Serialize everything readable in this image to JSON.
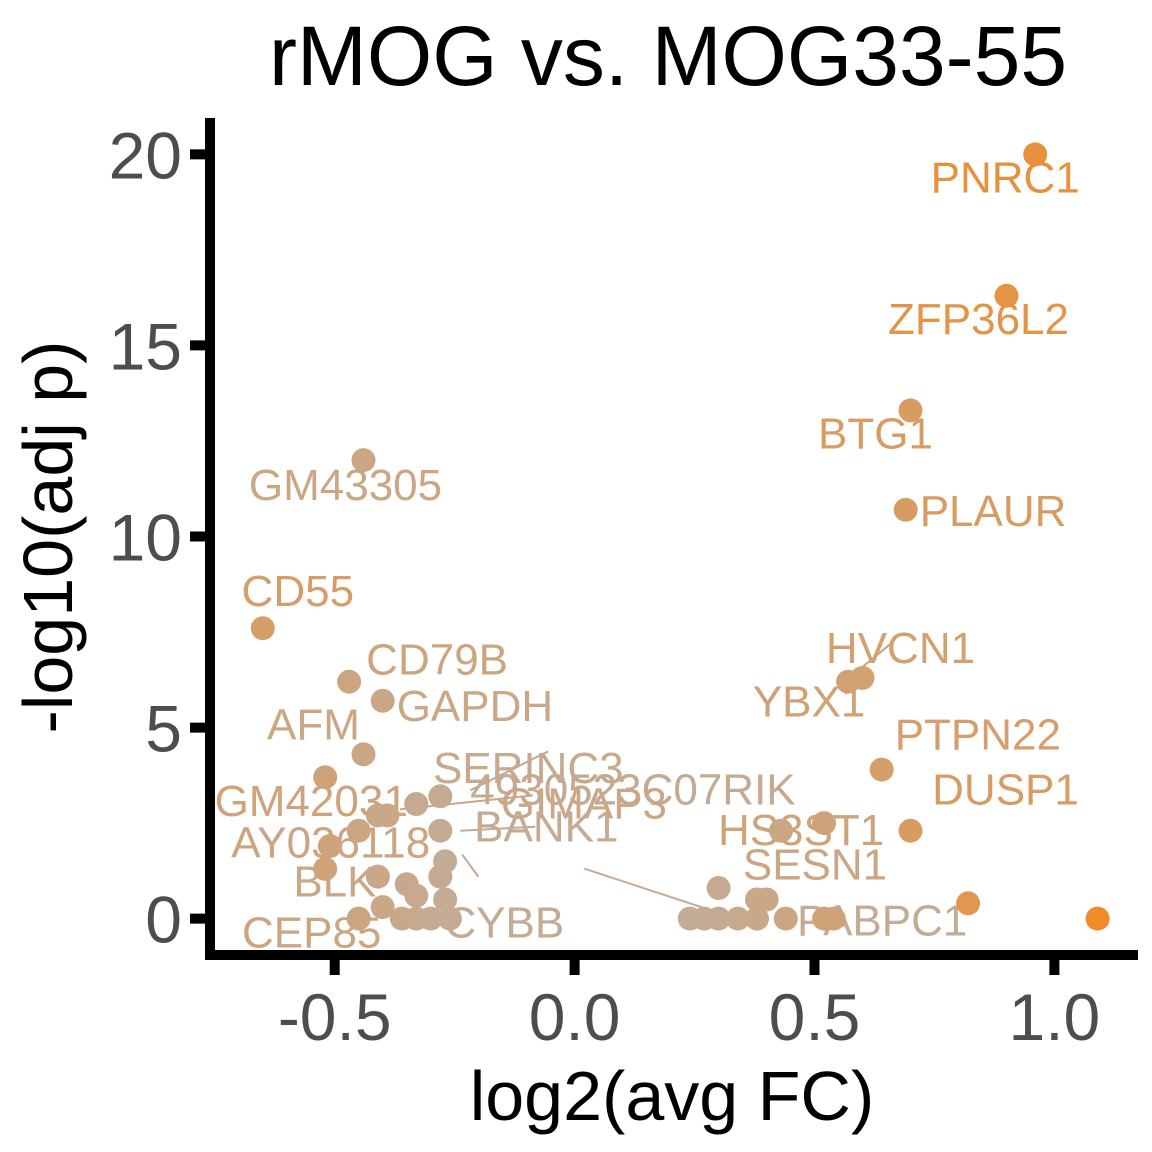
{
  "chart_data": {
    "type": "scatter",
    "title": "rMOG vs. MOG33-55",
    "xlabel": "log2(avg FC)",
    "ylabel": "-log10(adj p)",
    "xlim": [
      -0.76,
      1.17
    ],
    "ylim": [
      -0.9,
      20.9
    ],
    "xticks": [
      -0.5,
      0.0,
      0.5,
      1.0
    ],
    "xtick_labels": [
      "-0.5",
      "0.0",
      "0.5",
      "1.0"
    ],
    "yticks": [
      0,
      5,
      10,
      15,
      20
    ],
    "ytick_labels": [
      "0",
      "5",
      "10",
      "15",
      "20"
    ],
    "grid": false,
    "legend": "none",
    "colors": {
      "low": "#bdb0a6",
      "high": "#ef8b28",
      "axis": "#000000",
      "tick_text": "#4d4d4d"
    },
    "points": [
      {
        "x": 0.96,
        "y": 20.0,
        "label": "PNRC1"
      },
      {
        "x": 0.9,
        "y": 16.3,
        "label": "ZFP36L2"
      },
      {
        "x": 0.7,
        "y": 13.3,
        "label": "BTG1"
      },
      {
        "x": 0.69,
        "y": 10.7,
        "label": "PLAUR"
      },
      {
        "x": 0.6,
        "y": 6.3,
        "label": "HVCN1"
      },
      {
        "x": 0.57,
        "y": 6.2,
        "label": "YBX1"
      },
      {
        "x": 0.64,
        "y": 3.9,
        "label": "PTPN22"
      },
      {
        "x": 0.52,
        "y": 2.5,
        "label": "HS3ST1"
      },
      {
        "x": 0.7,
        "y": 2.3,
        "label": "DUSP1"
      },
      {
        "x": 0.43,
        "y": 2.3,
        "label": "SESN1"
      },
      {
        "x": 0.82,
        "y": 0.4,
        "label": ""
      },
      {
        "x": 1.09,
        "y": 0.0,
        "label": ""
      },
      {
        "x": 0.3,
        "y": 0.8,
        "label": ""
      },
      {
        "x": 0.38,
        "y": 0.5,
        "label": ""
      },
      {
        "x": 0.4,
        "y": 0.5,
        "label": ""
      },
      {
        "x": 0.52,
        "y": 0.0,
        "label": ""
      },
      {
        "x": 0.54,
        "y": 0.0,
        "label": ""
      },
      {
        "x": 0.44,
        "y": 0.0,
        "label": ""
      },
      {
        "x": 0.38,
        "y": 0.0,
        "label": ""
      },
      {
        "x": 0.34,
        "y": 0.0,
        "label": ""
      },
      {
        "x": 0.3,
        "y": 0.0,
        "label": ""
      },
      {
        "x": 0.27,
        "y": 0.0,
        "label": "PABPC1"
      },
      {
        "x": 0.24,
        "y": 0.0,
        "label": ""
      },
      {
        "x": -0.44,
        "y": 12.0,
        "label": "GM43305"
      },
      {
        "x": -0.65,
        "y": 7.6,
        "label": "CD55"
      },
      {
        "x": -0.47,
        "y": 6.2,
        "label": "CD79B"
      },
      {
        "x": -0.4,
        "y": 5.7,
        "label": "GAPDH"
      },
      {
        "x": -0.44,
        "y": 4.3,
        "label": "AFM"
      },
      {
        "x": -0.52,
        "y": 3.7,
        "label": "GM42031"
      },
      {
        "x": -0.28,
        "y": 3.2,
        "label": "4930523C07RIK"
      },
      {
        "x": -0.33,
        "y": 3.0,
        "label": "SERINC3"
      },
      {
        "x": -0.41,
        "y": 2.7,
        "label": "GIMAP3"
      },
      {
        "x": -0.39,
        "y": 2.7,
        "label": ""
      },
      {
        "x": -0.45,
        "y": 2.3,
        "label": "AY036118"
      },
      {
        "x": -0.28,
        "y": 2.3,
        "label": "BANK1"
      },
      {
        "x": -0.51,
        "y": 1.9,
        "label": ""
      },
      {
        "x": -0.52,
        "y": 1.3,
        "label": ""
      },
      {
        "x": -0.41,
        "y": 1.1,
        "label": "BLK"
      },
      {
        "x": -0.27,
        "y": 1.5,
        "label": ""
      },
      {
        "x": -0.28,
        "y": 1.1,
        "label": "CYBB"
      },
      {
        "x": -0.35,
        "y": 0.9,
        "label": ""
      },
      {
        "x": -0.33,
        "y": 0.6,
        "label": ""
      },
      {
        "x": -0.4,
        "y": 0.3,
        "label": ""
      },
      {
        "x": -0.45,
        "y": 0.0,
        "label": "CEP85"
      },
      {
        "x": -0.36,
        "y": 0.0,
        "label": ""
      },
      {
        "x": -0.33,
        "y": 0.0,
        "label": ""
      },
      {
        "x": -0.3,
        "y": 0.0,
        "label": ""
      },
      {
        "x": -0.26,
        "y": 0.0,
        "label": ""
      },
      {
        "x": -0.27,
        "y": 0.5,
        "label": ""
      }
    ]
  }
}
